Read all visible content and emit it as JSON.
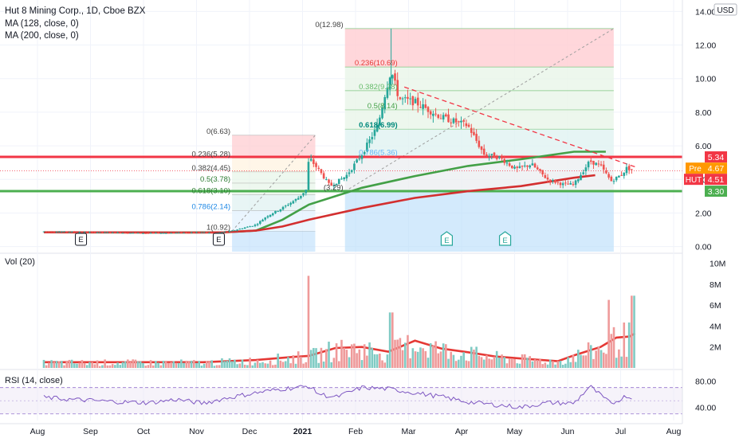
{
  "header": {
    "title": "Hut 8 Mining Corp., 1D, Cboe BZX",
    "ma128": "MA (128, close, 0)",
    "ma200": "MA (200, close, 0)",
    "currency": "USD",
    "vol_label": "Vol (20)",
    "rsi_label": "RSI (14, close)"
  },
  "colors": {
    "up": "#26a69a",
    "down": "#ef5350",
    "ma128": "#43a047",
    "ma200": "#d32f2f",
    "resistance": "#f23645",
    "support": "#4caf50",
    "rsi": "#7e57c2",
    "grid": "#f0f3fa",
    "axis_text": "#131722"
  },
  "chart_data": [
    {
      "type": "candlestick",
      "title": "Hut 8 Mining Corp., 1D, Cboe BZX",
      "x_ticks": [
        "Aug",
        "Sep",
        "Oct",
        "Nov",
        "Dec",
        "2021",
        "Feb",
        "Mar",
        "Apr",
        "May",
        "Jun",
        "Jul",
        "Aug"
      ],
      "y_ticks": [
        "0.00",
        "2.00",
        "4.00",
        "6.00",
        "8.00",
        "10.00",
        "12.00",
        "14.00"
      ],
      "ylim": [
        -0.3,
        14.3
      ],
      "series": [
        {
          "name": "MA (128, close, 0)",
          "role": "ma128",
          "points": [
            [
              0,
              0.85
            ],
            [
              2.5,
              0.84
            ],
            [
              3.4,
              0.85
            ],
            [
              4,
              0.95
            ],
            [
              4.5,
              1.6
            ],
            [
              5,
              2.5
            ],
            [
              6,
              3.5
            ],
            [
              7,
              4.2
            ],
            [
              8,
              4.8
            ],
            [
              9,
              5.2
            ],
            [
              10,
              5.65
            ],
            [
              10.6,
              5.65
            ]
          ]
        },
        {
          "name": "MA (200, close, 0)",
          "role": "ma200",
          "points": [
            [
              0,
              0.85
            ],
            [
              3,
              0.84
            ],
            [
              3.4,
              0.85
            ],
            [
              4,
              0.95
            ],
            [
              4.5,
              1.2
            ],
            [
              5,
              1.6
            ],
            [
              6,
              2.3
            ],
            [
              7,
              2.9
            ],
            [
              8,
              3.3
            ],
            [
              9,
              3.6
            ],
            [
              10,
              4.1
            ],
            [
              10.4,
              4.25
            ]
          ]
        },
        {
          "name": "price",
          "role": "price",
          "points": [
            [
              0,
              0.9
            ],
            [
              1,
              0.85
            ],
            [
              2,
              0.8
            ],
            [
              3,
              0.85
            ],
            [
              3.2,
              0.8
            ],
            [
              3.5,
              0.9
            ],
            [
              4,
              1.3
            ],
            [
              4.2,
              1.8
            ],
            [
              4.5,
              2.3
            ],
            [
              4.8,
              2.9
            ],
            [
              4.95,
              3.4
            ],
            [
              5.0,
              5.3
            ],
            [
              5.2,
              4.5
            ],
            [
              5.4,
              3.6
            ],
            [
              5.7,
              4.2
            ],
            [
              6,
              5.5
            ],
            [
              6.3,
              7.2
            ],
            [
              6.45,
              9.3
            ],
            [
              6.55,
              10.5
            ],
            [
              6.7,
              8.8
            ],
            [
              7,
              8.6
            ],
            [
              7.5,
              7.7
            ],
            [
              8,
              7.2
            ],
            [
              8.3,
              5.5
            ],
            [
              8.6,
              5.3
            ],
            [
              8.9,
              4.6
            ],
            [
              9.2,
              4.9
            ],
            [
              9.5,
              4.0
            ],
            [
              9.8,
              3.7
            ],
            [
              10,
              3.7
            ],
            [
              10.3,
              5.1
            ],
            [
              10.5,
              4.8
            ],
            [
              10.7,
              3.9
            ],
            [
              10.9,
              4.3
            ],
            [
              11,
              4.7
            ],
            [
              11.1,
              4.55
            ]
          ]
        },
        {
          "name": "Vol (20)",
          "role": "vol_ma",
          "points": [
            [
              0,
              0.55
            ],
            [
              3,
              0.55
            ],
            [
              4,
              0.75
            ],
            [
              4.7,
              1.05
            ],
            [
              5,
              1.15
            ],
            [
              5.5,
              1.9
            ],
            [
              6,
              2.0
            ],
            [
              6.5,
              1.55
            ],
            [
              7,
              2.6
            ],
            [
              7.5,
              1.85
            ],
            [
              8,
              1.5
            ],
            [
              8.5,
              1.1
            ],
            [
              9,
              0.9
            ],
            [
              9.7,
              0.65
            ],
            [
              10,
              1.2
            ],
            [
              10.5,
              2.0
            ],
            [
              10.8,
              2.9
            ],
            [
              11.05,
              3.0
            ],
            [
              11.15,
              3.3
            ]
          ]
        },
        {
          "name": "RSI (14, close)",
          "role": "rsi",
          "points": [
            [
              0,
              55
            ],
            [
              0.5,
              52
            ],
            [
              1,
              50
            ],
            [
              1.5,
              48
            ],
            [
              2,
              47
            ],
            [
              2.5,
              52
            ],
            [
              3,
              46
            ],
            [
              3.5,
              55
            ],
            [
              4,
              62
            ],
            [
              4.5,
              68
            ],
            [
              5,
              72
            ],
            [
              5.2,
              60
            ],
            [
              5.5,
              55
            ],
            [
              6,
              70
            ],
            [
              6.5,
              68
            ],
            [
              7,
              62
            ],
            [
              7.5,
              56
            ],
            [
              8,
              48
            ],
            [
              8.5,
              44
            ],
            [
              9,
              40
            ],
            [
              9.5,
              47
            ],
            [
              10,
              46
            ],
            [
              10.3,
              72
            ],
            [
              10.7,
              45
            ],
            [
              11,
              58
            ],
            [
              11.1,
              52
            ]
          ]
        }
      ],
      "volume": {
        "y_ticks": [
          "2M",
          "4M",
          "6M",
          "8M",
          "10M"
        ],
        "ylim": [
          0,
          10.5
        ],
        "unit": "M"
      },
      "rsi": {
        "y_ticks": [
          "40.00",
          "80.00"
        ],
        "ylim": [
          20,
          95
        ],
        "bands": [
          30,
          70
        ]
      }
    }
  ],
  "fib_left": [
    {
      "label": "0(6.63)",
      "value": 6.63
    },
    {
      "label": "0.236(5.28)",
      "value": 5.28
    },
    {
      "label": "0.382(4.45)",
      "value": 4.45
    },
    {
      "label": "0.5(3.78)",
      "value": 3.78
    },
    {
      "label": "0.618(3.10)",
      "value": 3.1
    },
    {
      "label": "0.786(2.14)",
      "value": 2.14
    },
    {
      "label": "1(0.92)",
      "value": 0.92
    }
  ],
  "fib_right": [
    {
      "label": "0(12.98)",
      "value": 12.98
    },
    {
      "label": "0.236(10.69)",
      "value": 10.69
    },
    {
      "label": "0.382(9.28)",
      "value": 9.28
    },
    {
      "label": "0.5(8.14)",
      "value": 8.14
    },
    {
      "label": "0.618(6.99)",
      "value": 6.99
    },
    {
      "label": "0.786(5.36)",
      "value": 5.36
    },
    {
      "label": "(3.29)",
      "value": 3.29
    }
  ],
  "levels": {
    "resistance": 5.34,
    "support": 3.3
  },
  "badges": [
    {
      "name": "resistance-price-badge",
      "text": "5.34",
      "value": 5.34,
      "color": "#f23645",
      "prefix": ""
    },
    {
      "name": "premarket-price-badge",
      "text": "4.67",
      "value": 4.67,
      "color": "#ff9800",
      "prefix": "Pre"
    },
    {
      "name": "last-price-badge",
      "text": "4.51",
      "value": 4.51,
      "color": "#f23645",
      "prefix": "HUT"
    },
    {
      "name": "support-price-badge",
      "text": "3.30",
      "value": 3.3,
      "color": "#4caf50",
      "prefix": ""
    }
  ],
  "events": [
    {
      "text": "E",
      "t": 0.7,
      "style": "dark"
    },
    {
      "text": "E",
      "t": 3.3,
      "style": "dark"
    },
    {
      "text": "E",
      "t": 7.6,
      "style": "green"
    },
    {
      "text": "E",
      "t": 8.7,
      "style": "green"
    }
  ]
}
